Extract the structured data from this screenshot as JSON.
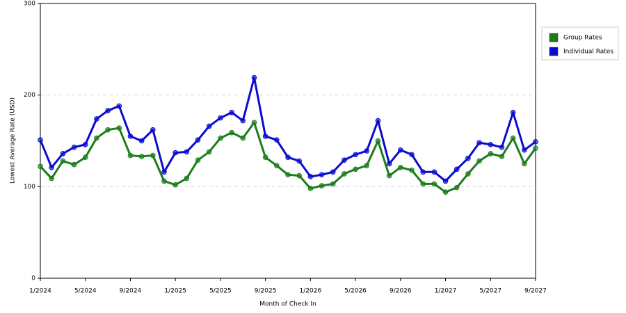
{
  "chart_data": {
    "type": "line",
    "x_label": "Month of Check In",
    "y_label": "Lowest Average Rate (USD)",
    "categories": [
      "1/2024",
      null,
      null,
      null,
      "5/2024",
      null,
      null,
      null,
      "9/2024",
      null,
      null,
      null,
      "1/2025",
      null,
      null,
      null,
      "5/2025",
      null,
      null,
      null,
      "9/2025",
      null,
      null,
      null,
      "1/2026",
      null,
      null,
      null,
      "5/2026",
      null,
      null,
      null,
      "9/2026",
      null,
      null,
      null,
      "1/2027",
      null,
      null,
      null,
      "5/2027",
      null,
      null,
      null,
      "9/2027"
    ],
    "series": [
      {
        "name": "Group Rates",
        "color": "#1a7d1a",
        "values": [
          122,
          109,
          128,
          124,
          132,
          153,
          162,
          164,
          134,
          133,
          134,
          106,
          102,
          109,
          129,
          138,
          153,
          159,
          153,
          170,
          132,
          123,
          113,
          112,
          98,
          101,
          103,
          114,
          119,
          123,
          150,
          112,
          121,
          118,
          103,
          103,
          94,
          99,
          114,
          128,
          136,
          133,
          153,
          125,
          142
        ]
      },
      {
        "name": "Individual Rates",
        "color": "#0a0ad0",
        "values": [
          151,
          121,
          136,
          143,
          146,
          174,
          183,
          188,
          155,
          150,
          162,
          116,
          137,
          138,
          151,
          166,
          175,
          181,
          172,
          219,
          155,
          151,
          132,
          128,
          111,
          113,
          116,
          129,
          135,
          139,
          172,
          125,
          140,
          135,
          116,
          116,
          106,
          119,
          131,
          148,
          146,
          143,
          181,
          140,
          149
        ]
      }
    ],
    "ylim": [
      0,
      300
    ],
    "yticks": [
      0,
      100,
      200,
      300
    ],
    "grid": true,
    "legend": "right"
  }
}
